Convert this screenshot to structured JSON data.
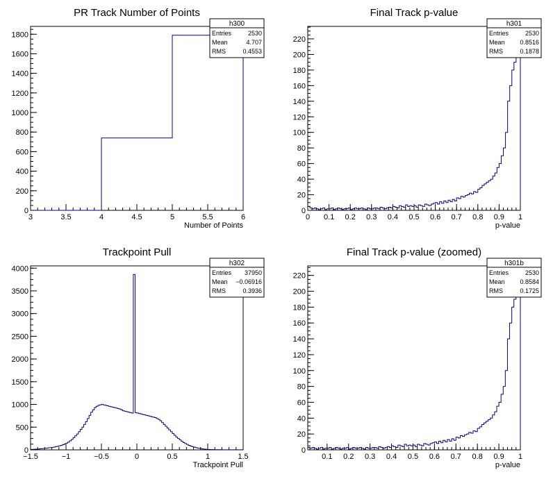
{
  "chart_data": [
    {
      "type": "histogram",
      "title": "PR Track Number of Points",
      "xlabel": "Number of Points",
      "ylabel": "",
      "xlim": [
        3,
        6
      ],
      "ylim": [
        0,
        1880
      ],
      "x_ticks": [
        3,
        3.5,
        4,
        4.5,
        5,
        5.5,
        6
      ],
      "y_ticks": [
        0,
        200,
        400,
        600,
        800,
        1000,
        1200,
        1400,
        1600,
        1800
      ],
      "line_color": "#00008b",
      "bins": [
        {
          "x0": 3,
          "x1": 4,
          "y": 0
        },
        {
          "x0": 4,
          "x1": 5,
          "y": 740
        },
        {
          "x0": 5,
          "x1": 6,
          "y": 1790
        }
      ],
      "stats": {
        "name": "h300",
        "rows": [
          {
            "label": "Entries",
            "value": "2530"
          },
          {
            "label": "Mean",
            "value": "4.707"
          },
          {
            "label": "RMS",
            "value": "0.4553"
          }
        ]
      }
    },
    {
      "type": "histogram",
      "title": "Final Track p-value",
      "xlabel": "p-value",
      "ylabel": "",
      "xlim": [
        0,
        1
      ],
      "ylim": [
        0,
        236
      ],
      "x_ticks": [
        0,
        0.1,
        0.2,
        0.3,
        0.4,
        0.5,
        0.6,
        0.7,
        0.8,
        0.9,
        1
      ],
      "y_ticks": [
        0,
        20,
        40,
        60,
        80,
        100,
        120,
        140,
        160,
        180,
        200,
        220
      ],
      "line_color": "#00008b",
      "bin_start": 0,
      "bin_width": 0.01,
      "counts": [
        5,
        3,
        2,
        3,
        2,
        1,
        2,
        3,
        1,
        2,
        2,
        3,
        1,
        2,
        3,
        2,
        1,
        2,
        2,
        3,
        1,
        2,
        3,
        2,
        2,
        3,
        2,
        1,
        3,
        2,
        2,
        3,
        3,
        2,
        4,
        3,
        2,
        3,
        4,
        3,
        5,
        4,
        3,
        6,
        5,
        4,
        7,
        5,
        6,
        5,
        6,
        4,
        7,
        6,
        5,
        8,
        7,
        6,
        8,
        9,
        10,
        8,
        11,
        9,
        12,
        10,
        13,
        11,
        14,
        12,
        16,
        15,
        18,
        17,
        19,
        20,
        22,
        21,
        24,
        23,
        27,
        29,
        32,
        34,
        36,
        38,
        40,
        44,
        48,
        55,
        60,
        70,
        80,
        100,
        140,
        160,
        180,
        190,
        200,
        215
      ]
    },
    {
      "type": "histogram",
      "title": "Trackpoint Pull",
      "xlabel": "Trackpoint Pull",
      "ylabel": "",
      "xlim": [
        -1.5,
        1.5
      ],
      "ylim": [
        0,
        4050
      ],
      "x_ticks": [
        -1.5,
        -1,
        -0.5,
        0,
        0.5,
        1,
        1.5
      ],
      "y_ticks": [
        0,
        500,
        1000,
        1500,
        2000,
        2500,
        3000,
        3500,
        4000
      ],
      "line_color": "#00008b",
      "bin_start": -1.5,
      "bin_width": 0.025,
      "counts": [
        10,
        12,
        14,
        16,
        18,
        22,
        26,
        30,
        35,
        40,
        45,
        50,
        55,
        62,
        70,
        78,
        90,
        100,
        115,
        130,
        150,
        170,
        200,
        230,
        270,
        310,
        350,
        400,
        450,
        500,
        560,
        620,
        690,
        760,
        830,
        880,
        930,
        960,
        980,
        990,
        1000,
        990,
        980,
        970,
        960,
        950,
        940,
        930,
        920,
        910,
        900,
        880,
        860,
        850,
        840,
        830,
        820,
        810,
        3860,
        820,
        810,
        800,
        790,
        780,
        770,
        760,
        750,
        740,
        730,
        720,
        710,
        690,
        670,
        640,
        600,
        560,
        520,
        480,
        440,
        400,
        360,
        320,
        280,
        250,
        220,
        190,
        160,
        140,
        120,
        100,
        85,
        70,
        60,
        50,
        40,
        32,
        26,
        20,
        16,
        12,
        10,
        8,
        6,
        5,
        4,
        4,
        3,
        3,
        2,
        2,
        2,
        2,
        1,
        1,
        1,
        1,
        1,
        1,
        1,
        1
      ]
    },
    {
      "type": "histogram",
      "title": "Final Track p-value (zoomed)",
      "xlabel": "p-value",
      "ylabel": "",
      "xlim": [
        0.01,
        1
      ],
      "ylim": [
        0,
        232
      ],
      "x_ticks": [
        0.1,
        0.2,
        0.3,
        0.4,
        0.5,
        0.6,
        0.7,
        0.8,
        0.9,
        1
      ],
      "y_ticks": [
        0,
        20,
        40,
        60,
        80,
        100,
        120,
        140,
        160,
        180,
        200,
        220
      ],
      "line_color": "#00008b",
      "bin_start": 0.01,
      "bin_width": 0.01,
      "counts": [
        3,
        2,
        3,
        2,
        1,
        2,
        3,
        1,
        2,
        2,
        3,
        1,
        2,
        3,
        2,
        1,
        2,
        2,
        3,
        1,
        2,
        3,
        2,
        2,
        3,
        2,
        1,
        3,
        2,
        2,
        3,
        3,
        2,
        4,
        3,
        2,
        3,
        4,
        3,
        5,
        4,
        3,
        6,
        5,
        4,
        7,
        5,
        6,
        5,
        6,
        4,
        7,
        6,
        5,
        8,
        7,
        6,
        8,
        9,
        10,
        8,
        11,
        9,
        12,
        10,
        13,
        11,
        14,
        12,
        16,
        15,
        18,
        17,
        19,
        20,
        22,
        21,
        24,
        23,
        27,
        29,
        32,
        34,
        36,
        38,
        40,
        44,
        48,
        55,
        60,
        70,
        80,
        100,
        140,
        160,
        180,
        190,
        200,
        215
      ]
    }
  ],
  "stats_boxes": [
    {
      "name": "h300",
      "rows": [
        {
          "label": "Entries",
          "value": "2530"
        },
        {
          "label": "Mean",
          "value": "4.707"
        },
        {
          "label": "RMS",
          "value": "0.4553"
        }
      ]
    },
    {
      "name": "h301",
      "rows": [
        {
          "label": "Entries",
          "value": "2530"
        },
        {
          "label": "Mean",
          "value": "0.8516"
        },
        {
          "label": "RMS",
          "value": "0.1878"
        }
      ]
    },
    {
      "name": "h302",
      "rows": [
        {
          "label": "Entries",
          "value": "37950"
        },
        {
          "label": "Mean",
          "value": "−0.06916"
        },
        {
          "label": "RMS",
          "value": "0.3936"
        }
      ]
    },
    {
      "name": "h301b",
      "rows": [
        {
          "label": "Entries",
          "value": "2530"
        },
        {
          "label": "Mean",
          "value": "0.8584"
        },
        {
          "label": "RMS",
          "value": "0.1725"
        }
      ]
    }
  ]
}
